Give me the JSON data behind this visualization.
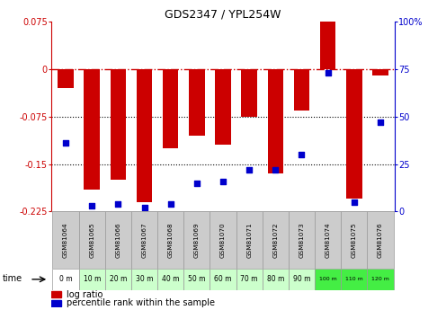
{
  "title": "GDS2347 / YPL254W",
  "samples": [
    "GSM81064",
    "GSM81065",
    "GSM81066",
    "GSM81067",
    "GSM81068",
    "GSM81069",
    "GSM81070",
    "GSM81071",
    "GSM81072",
    "GSM81073",
    "GSM81074",
    "GSM81075",
    "GSM81076"
  ],
  "time_labels": [
    "0 m",
    "10 m",
    "20 m",
    "30 m",
    "40 m",
    "50 m",
    "60 m",
    "70 m",
    "80 m",
    "90 m",
    "100 m",
    "110 m",
    "120 m"
  ],
  "log_ratio": [
    -0.03,
    -0.19,
    -0.175,
    -0.21,
    -0.125,
    -0.105,
    -0.12,
    -0.075,
    -0.165,
    -0.065,
    0.075,
    -0.205,
    -0.01
  ],
  "percentile": [
    36,
    3,
    4,
    2,
    4,
    15,
    16,
    22,
    22,
    30,
    73,
    5,
    47
  ],
  "ylim_left": [
    -0.225,
    0.075
  ],
  "ylim_right": [
    0,
    100
  ],
  "yticks_left": [
    0.075,
    0,
    -0.075,
    -0.15,
    -0.225
  ],
  "yticks_right": [
    100,
    75,
    50,
    25,
    0
  ],
  "bar_color": "#cc0000",
  "dot_color": "#0000cc",
  "zero_line_color": "#cc0000",
  "grid_color": "#000000",
  "sample_bg_color": "#cccccc",
  "time_bg_colors": [
    "#ffffff",
    "#ccffcc",
    "#ccffcc",
    "#ccffcc",
    "#ccffcc",
    "#ccffcc",
    "#ccffcc",
    "#ccffcc",
    "#ccffcc",
    "#ccffcc",
    "#44ee44",
    "#44ee44",
    "#44ee44"
  ],
  "legend_red_label": "log ratio",
  "legend_blue_label": "percentile rank within the sample",
  "time_label": "time"
}
